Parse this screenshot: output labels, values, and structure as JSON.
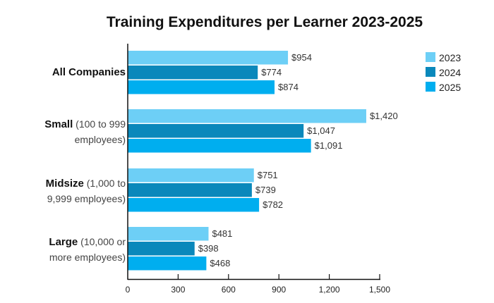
{
  "chart_data": {
    "type": "bar",
    "orientation": "horizontal",
    "title": "Training Expenditures per Learner 2023-2025",
    "categories": [
      {
        "bold": "All Companies",
        "rest": [
          "",
          ""
        ]
      },
      {
        "bold": "Small",
        "rest": [
          " (100 to 999",
          "employees)"
        ]
      },
      {
        "bold": "Midsize",
        "rest": [
          " (1,000 to",
          "9,999 employees)"
        ]
      },
      {
        "bold": "Large",
        "rest": [
          " (10,000 or",
          "more employees)"
        ]
      }
    ],
    "series": [
      {
        "name": "2023",
        "color": "#6dcff6",
        "values": [
          954,
          1420,
          751,
          481
        ],
        "labels": [
          "$954",
          "$1,420",
          "$751",
          "$481"
        ]
      },
      {
        "name": "2024",
        "color": "#0a88bb",
        "values": [
          774,
          1047,
          739,
          398
        ],
        "labels": [
          "$774",
          "$1,047",
          "$739",
          "$398"
        ]
      },
      {
        "name": "2025",
        "color": "#00aeef",
        "values": [
          874,
          1091,
          782,
          468
        ],
        "labels": [
          "$874",
          "$1,091",
          "$782",
          "$468"
        ]
      }
    ],
    "xlim": [
      0,
      1500
    ],
    "xticks": [
      "0",
      "300",
      "600",
      "900",
      "1,200",
      "1,500"
    ],
    "xtick_values": [
      0,
      300,
      600,
      900,
      1200,
      1500
    ],
    "xlabel": "",
    "ylabel": "",
    "grid": false,
    "legend": "top-right"
  }
}
